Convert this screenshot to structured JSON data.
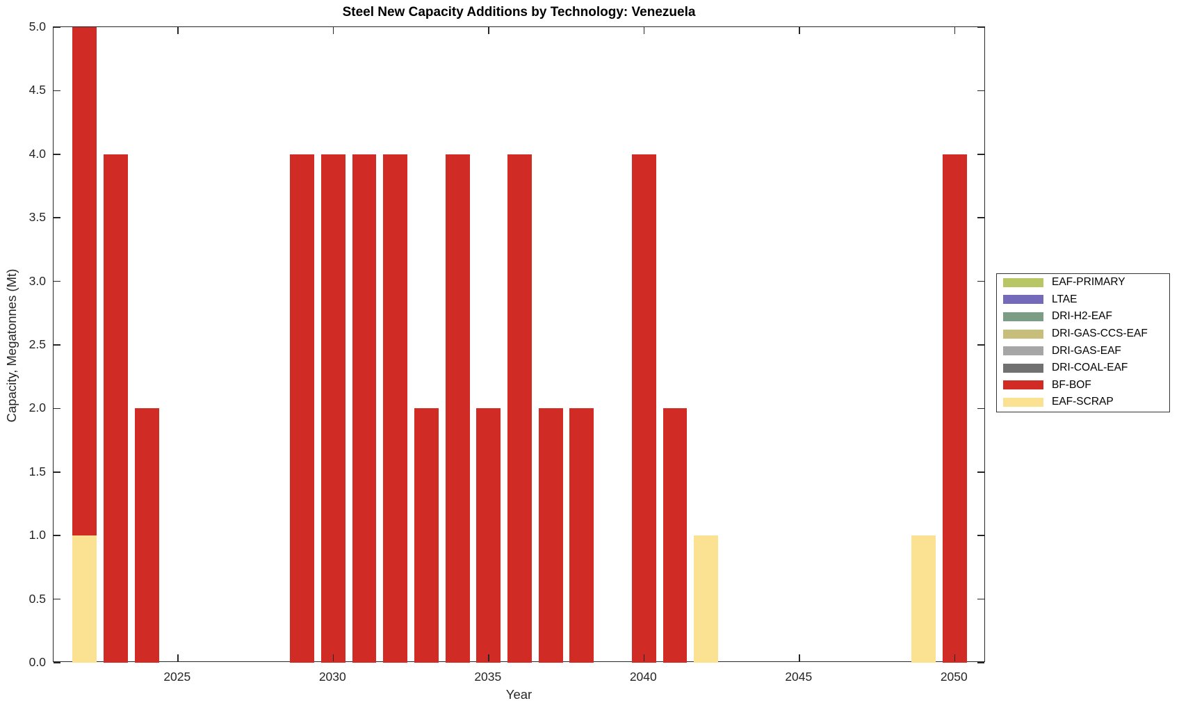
{
  "title": "Steel New Capacity Additions by Technology: Venezuela",
  "colors": {
    "axis": "#262626",
    "background": "#ffffff"
  },
  "chart_data": {
    "type": "bar",
    "stacked": true,
    "title": "Steel New Capacity Additions by Technology: Venezuela",
    "xlabel": "Year",
    "ylabel": "Capacity, Megatonnes (Mt)",
    "xlim": [
      2021,
      2051
    ],
    "ylim": [
      0,
      5
    ],
    "xticks": [
      2025,
      2030,
      2035,
      2040,
      2045,
      2050
    ],
    "ytick_step": 0.5,
    "ytick_labels": [
      "0.0",
      "0.5",
      "1.0",
      "1.5",
      "2.0",
      "2.5",
      "3.0",
      "3.5",
      "4.0",
      "4.5",
      "5.0"
    ],
    "grid": false,
    "legend_position": "outside-right",
    "bar_width_years": 0.78,
    "series": [
      {
        "name": "EAF-PRIMARY",
        "color": "#B9C666",
        "points": []
      },
      {
        "name": "LTAE",
        "color": "#746ABA",
        "points": []
      },
      {
        "name": "DRI-H2-EAF",
        "color": "#7B9D83",
        "points": []
      },
      {
        "name": "DRI-GAS-CCS-EAF",
        "color": "#C8BE7B",
        "points": []
      },
      {
        "name": "DRI-GAS-EAF",
        "color": "#A6A6A6",
        "points": []
      },
      {
        "name": "DRI-COAL-EAF",
        "color": "#717171",
        "points": []
      },
      {
        "name": "BF-BOF",
        "color": "#D02B25",
        "points": [
          [
            2022,
            4
          ],
          [
            2023,
            4
          ],
          [
            2024,
            2
          ],
          [
            2029,
            4
          ],
          [
            2030,
            4
          ],
          [
            2031,
            4
          ],
          [
            2032,
            4
          ],
          [
            2033,
            2
          ],
          [
            2034,
            4
          ],
          [
            2035,
            2
          ],
          [
            2036,
            4
          ],
          [
            2037,
            2
          ],
          [
            2038,
            2
          ],
          [
            2040,
            4
          ],
          [
            2041,
            2
          ],
          [
            2050,
            4
          ]
        ]
      },
      {
        "name": "EAF-SCRAP",
        "color": "#FBE293",
        "points": [
          [
            2022,
            1
          ],
          [
            2042,
            1
          ],
          [
            2049,
            1
          ]
        ]
      }
    ]
  }
}
